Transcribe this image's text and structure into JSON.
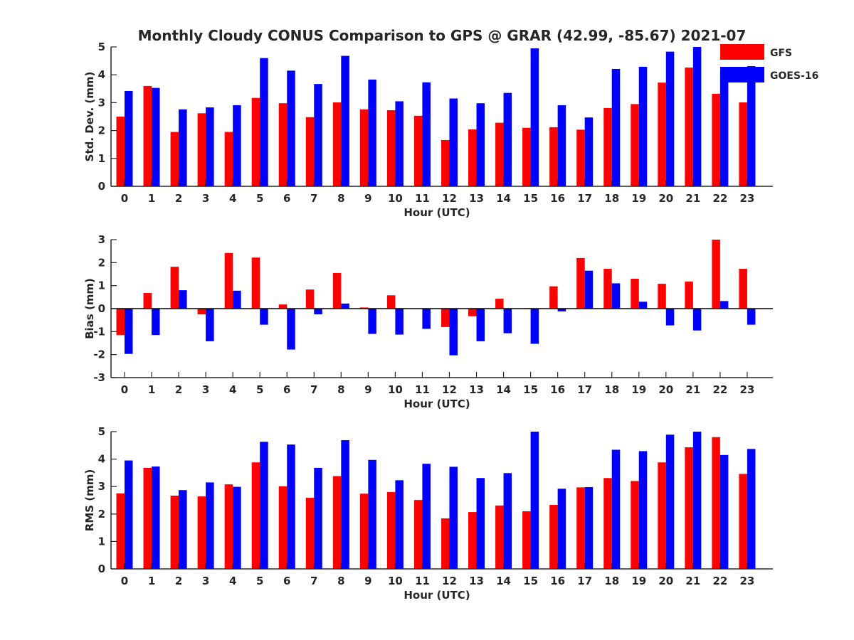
{
  "chart_data": [
    {
      "type": "bar",
      "title": "Monthly Cloudy CONUS Comparison to GPS @ GRAR (42.99, -85.67) 2021-07",
      "xlabel": "Hour (UTC)",
      "ylabel": "Std. Dev. (mm)",
      "ylim": [
        0,
        5
      ],
      "yticks": [
        0,
        1,
        2,
        3,
        4,
        5
      ],
      "categories": [
        "0",
        "1",
        "2",
        "3",
        "4",
        "5",
        "6",
        "7",
        "8",
        "9",
        "10",
        "11",
        "12",
        "13",
        "14",
        "15",
        "16",
        "17",
        "18",
        "19",
        "20",
        "21",
        "22",
        "23"
      ],
      "grid": false,
      "legend": "top-right, outside",
      "series": [
        {
          "name": "GFS",
          "color": "#ff0000",
          "values": [
            2.5,
            3.6,
            1.95,
            2.62,
            1.95,
            3.17,
            2.98,
            2.48,
            3.01,
            2.76,
            2.73,
            2.53,
            1.66,
            2.04,
            2.28,
            2.1,
            2.12,
            2.03,
            2.81,
            2.95,
            3.72,
            4.26,
            3.32,
            3.01
          ]
        },
        {
          "name": "GOES-16",
          "color": "#0000ff",
          "values": [
            3.42,
            3.53,
            2.76,
            2.83,
            2.91,
            4.6,
            4.15,
            3.67,
            4.68,
            3.83,
            3.05,
            3.73,
            3.15,
            2.98,
            3.35,
            4.95,
            2.91,
            2.47,
            4.21,
            4.29,
            4.83,
            5.0,
            4.13,
            4.31
          ]
        }
      ]
    },
    {
      "type": "bar",
      "xlabel": "Hour (UTC)",
      "ylabel": "Bias (mm)",
      "ylim": [
        -3,
        3
      ],
      "yticks": [
        -3,
        -2,
        -1,
        0,
        1,
        2,
        3
      ],
      "categories": [
        "0",
        "1",
        "2",
        "3",
        "4",
        "5",
        "6",
        "7",
        "8",
        "9",
        "10",
        "11",
        "12",
        "13",
        "14",
        "15",
        "16",
        "17",
        "18",
        "19",
        "20",
        "21",
        "22",
        "23"
      ],
      "grid": false,
      "zero_line": true,
      "series": [
        {
          "name": "GFS",
          "color": "#ff0000",
          "values": [
            -1.15,
            0.68,
            1.82,
            -0.25,
            2.42,
            2.22,
            0.18,
            0.83,
            1.55,
            0.05,
            0.58,
            0.0,
            -0.8,
            -0.33,
            0.43,
            0.02,
            0.97,
            2.2,
            1.73,
            1.3,
            1.08,
            1.18,
            3.0,
            1.73
          ]
        },
        {
          "name": "GOES-16",
          "color": "#0000ff",
          "values": [
            -1.97,
            -1.15,
            0.8,
            -1.42,
            0.78,
            -0.7,
            -1.78,
            -0.25,
            0.22,
            -1.1,
            -1.13,
            -0.88,
            -2.03,
            -1.42,
            -1.07,
            -1.53,
            -0.12,
            1.65,
            1.1,
            0.3,
            -0.73,
            -0.95,
            0.33,
            -0.7
          ]
        }
      ]
    },
    {
      "type": "bar",
      "xlabel": "Hour (UTC)",
      "ylabel": "RMS (mm)",
      "ylim": [
        0,
        5
      ],
      "yticks": [
        0,
        1,
        2,
        3,
        4,
        5
      ],
      "categories": [
        "0",
        "1",
        "2",
        "3",
        "4",
        "5",
        "6",
        "7",
        "8",
        "9",
        "10",
        "11",
        "12",
        "13",
        "14",
        "15",
        "16",
        "17",
        "18",
        "19",
        "20",
        "21",
        "22",
        "23"
      ],
      "grid": false,
      "series": [
        {
          "name": "GFS",
          "color": "#ff0000",
          "values": [
            2.75,
            3.68,
            2.67,
            2.64,
            3.08,
            3.88,
            3.01,
            2.59,
            3.38,
            2.74,
            2.8,
            2.51,
            1.84,
            2.07,
            2.31,
            2.1,
            2.33,
            2.97,
            3.31,
            3.2,
            3.88,
            4.43,
            4.8,
            3.46
          ]
        },
        {
          "name": "GOES-16",
          "color": "#0000ff",
          "values": [
            3.95,
            3.73,
            2.87,
            3.15,
            2.99,
            4.63,
            4.53,
            3.68,
            4.69,
            3.97,
            3.23,
            3.83,
            3.72,
            3.31,
            3.49,
            5.0,
            2.92,
            2.98,
            4.34,
            4.29,
            4.89,
            5.0,
            4.15,
            4.37
          ]
        }
      ]
    }
  ]
}
